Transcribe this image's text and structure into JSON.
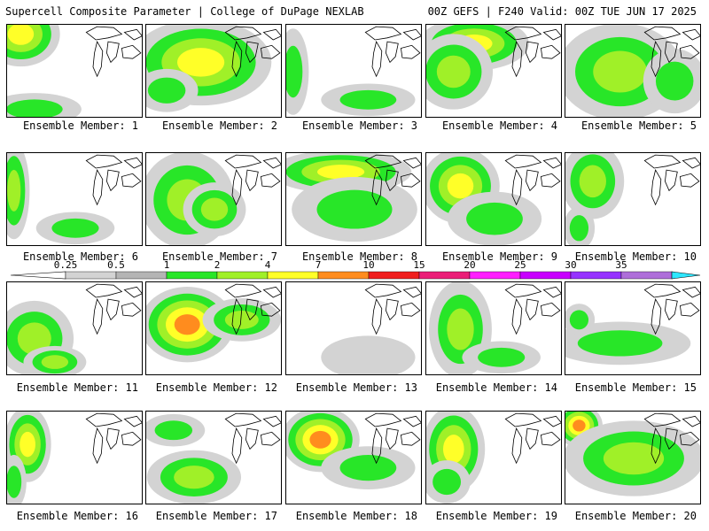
{
  "header": {
    "title": "Supercell Composite Parameter | College of DuPage NEXLAB",
    "run_info": "00Z GEFS | F240 Valid: 00Z TUE JUN 17 2025"
  },
  "member_label_prefix": "Ensemble Member: ",
  "colorbar": {
    "levels": [
      "0.25",
      "0.5",
      "1",
      "2",
      "4",
      "7",
      "10",
      "15",
      "20",
      "25",
      "30",
      "35"
    ],
    "colors": [
      "#d3d3d3",
      "#b4b4b4",
      "#28e628",
      "#a0f028",
      "#ffff28",
      "#ff8c1e",
      "#f01e1e",
      "#eb1e78",
      "#ff1eff",
      "#c800ff",
      "#9632ff",
      "#ae6ed9",
      "#2de6ff"
    ]
  },
  "members": [
    {
      "id": "1",
      "intensity": 0.7,
      "blobs": [
        [
          0.1,
          0.1,
          0.25,
          0.3,
          3
        ],
        [
          0.2,
          0.9,
          0.3,
          0.15,
          1
        ]
      ]
    },
    {
      "id": "2",
      "intensity": 0.9,
      "blobs": [
        [
          0.4,
          0.4,
          0.45,
          0.4,
          3
        ],
        [
          0.15,
          0.7,
          0.2,
          0.2,
          1
        ]
      ]
    },
    {
      "id": "3",
      "intensity": 0.4,
      "blobs": [
        [
          0.05,
          0.5,
          0.1,
          0.4,
          1
        ],
        [
          0.6,
          0.8,
          0.3,
          0.15,
          1
        ]
      ]
    },
    {
      "id": "4",
      "intensity": 0.9,
      "blobs": [
        [
          0.35,
          0.2,
          0.35,
          0.25,
          3
        ],
        [
          0.2,
          0.5,
          0.25,
          0.35,
          2
        ]
      ]
    },
    {
      "id": "5",
      "intensity": 0.8,
      "blobs": [
        [
          0.4,
          0.5,
          0.4,
          0.45,
          2
        ],
        [
          0.8,
          0.6,
          0.2,
          0.3,
          1
        ]
      ]
    },
    {
      "id": "6",
      "intensity": 0.5,
      "blobs": [
        [
          0.05,
          0.4,
          0.1,
          0.45,
          2
        ],
        [
          0.5,
          0.8,
          0.25,
          0.15,
          1
        ]
      ]
    },
    {
      "id": "7",
      "intensity": 0.7,
      "blobs": [
        [
          0.3,
          0.5,
          0.3,
          0.45,
          2
        ],
        [
          0.5,
          0.6,
          0.2,
          0.25,
          2
        ]
      ]
    },
    {
      "id": "8",
      "intensity": 0.9,
      "blobs": [
        [
          0.4,
          0.2,
          0.45,
          0.2,
          3
        ],
        [
          0.5,
          0.6,
          0.4,
          0.3,
          1
        ]
      ]
    },
    {
      "id": "9",
      "intensity": 0.8,
      "blobs": [
        [
          0.25,
          0.35,
          0.25,
          0.35,
          3
        ],
        [
          0.5,
          0.7,
          0.3,
          0.25,
          1
        ]
      ]
    },
    {
      "id": "10",
      "intensity": 0.7,
      "blobs": [
        [
          0.2,
          0.3,
          0.2,
          0.35,
          2
        ],
        [
          0.1,
          0.8,
          0.1,
          0.2,
          1
        ]
      ]
    },
    {
      "id": "11",
      "intensity": 0.6,
      "blobs": [
        [
          0.2,
          0.6,
          0.25,
          0.35,
          2
        ],
        [
          0.35,
          0.85,
          0.2,
          0.15,
          2
        ]
      ]
    },
    {
      "id": "12",
      "intensity": 0.95,
      "blobs": [
        [
          0.3,
          0.45,
          0.3,
          0.35,
          4
        ],
        [
          0.7,
          0.4,
          0.25,
          0.2,
          2
        ]
      ]
    },
    {
      "id": "13",
      "intensity": 0.2,
      "blobs": [
        [
          0.6,
          0.8,
          0.3,
          0.2,
          0
        ]
      ]
    },
    {
      "id": "14",
      "intensity": 0.6,
      "blobs": [
        [
          0.25,
          0.5,
          0.2,
          0.45,
          2
        ],
        [
          0.55,
          0.8,
          0.25,
          0.15,
          1
        ]
      ]
    },
    {
      "id": "15",
      "intensity": 0.4,
      "blobs": [
        [
          0.4,
          0.65,
          0.45,
          0.2,
          1
        ],
        [
          0.1,
          0.4,
          0.1,
          0.15,
          1
        ]
      ]
    },
    {
      "id": "16",
      "intensity": 0.7,
      "blobs": [
        [
          0.15,
          0.35,
          0.15,
          0.35,
          3
        ],
        [
          0.05,
          0.75,
          0.08,
          0.25,
          1
        ]
      ]
    },
    {
      "id": "17",
      "intensity": 0.5,
      "blobs": [
        [
          0.35,
          0.7,
          0.3,
          0.25,
          2
        ],
        [
          0.2,
          0.2,
          0.2,
          0.15,
          1
        ]
      ]
    },
    {
      "id": "18",
      "intensity": 0.95,
      "blobs": [
        [
          0.25,
          0.3,
          0.25,
          0.3,
          4
        ],
        [
          0.6,
          0.6,
          0.3,
          0.2,
          1
        ]
      ]
    },
    {
      "id": "19",
      "intensity": 0.8,
      "blobs": [
        [
          0.2,
          0.4,
          0.2,
          0.4,
          3
        ],
        [
          0.15,
          0.75,
          0.15,
          0.2,
          1
        ]
      ]
    },
    {
      "id": "20",
      "intensity": 0.95,
      "blobs": [
        [
          0.1,
          0.15,
          0.15,
          0.2,
          4
        ],
        [
          0.5,
          0.5,
          0.45,
          0.35,
          2
        ]
      ]
    }
  ]
}
